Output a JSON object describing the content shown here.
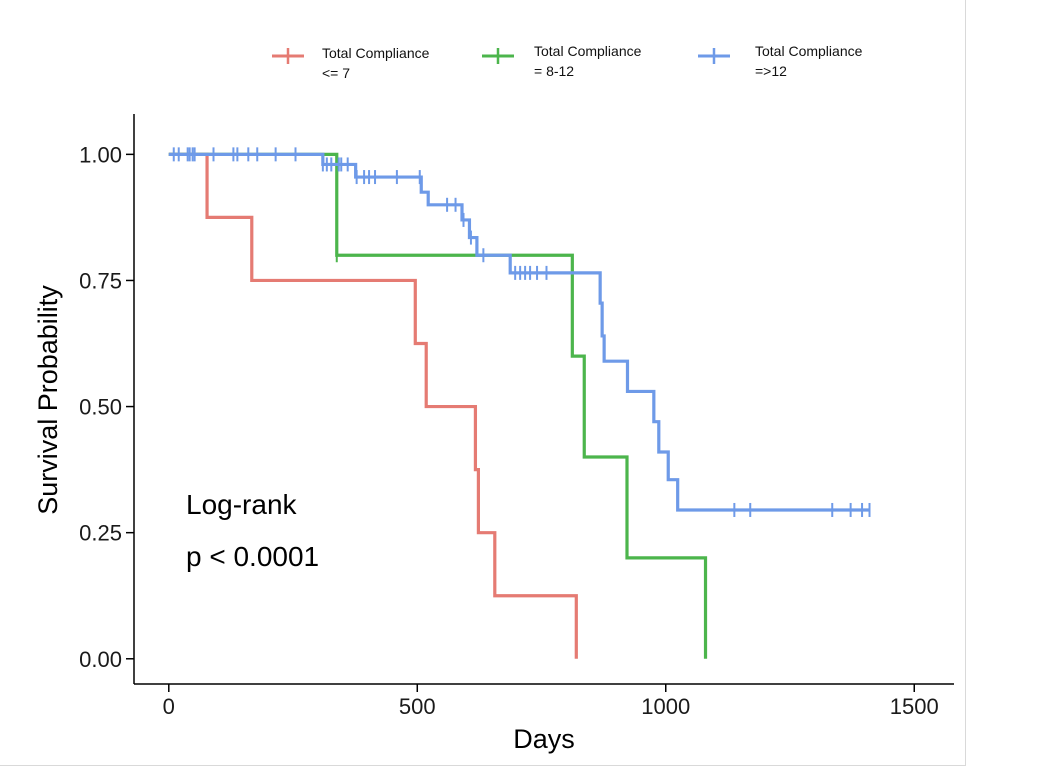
{
  "chart_data": {
    "type": "line",
    "subtype": "kaplan-meier",
    "xlabel": "Days",
    "ylabel": "Survival Probability",
    "xlim": [
      -70,
      1580
    ],
    "ylim": [
      -0.05,
      1.08
    ],
    "x_ticks": [
      0,
      500,
      1000,
      1500
    ],
    "x_tick_labels": [
      "0",
      "500",
      "1000",
      "1500"
    ],
    "y_ticks": [
      0,
      0.25,
      0.5,
      0.75,
      1.0
    ],
    "y_tick_labels": [
      "0.00",
      "0.25",
      "0.50",
      "0.75",
      "1.00"
    ],
    "grid": false,
    "legend_position": "top",
    "annotation": {
      "line1": "Log-rank",
      "line2": "p < 0.0001"
    },
    "series": [
      {
        "name": "Total Compliance\n<= 7",
        "color": "#E57B73",
        "steps": [
          [
            0,
            1.0
          ],
          [
            77,
            0.875
          ],
          [
            167,
            0.75
          ],
          [
            496,
            0.625
          ],
          [
            518,
            0.5
          ],
          [
            617,
            0.375
          ],
          [
            623,
            0.25
          ],
          [
            656,
            0.125
          ],
          [
            820,
            0.0
          ]
        ],
        "censor_times": []
      },
      {
        "name": "Total Compliance\n= 8-12",
        "color": "#4CB54C",
        "steps": [
          [
            0,
            1.0
          ],
          [
            338,
            0.8
          ],
          [
            812,
            0.6
          ],
          [
            836,
            0.4
          ],
          [
            922,
            0.2
          ],
          [
            1080,
            0.0
          ]
        ],
        "censor_times": [
          338
        ]
      },
      {
        "name": "Total Compliance\n=>12",
        "color": "#6E9AE8",
        "steps": [
          [
            0,
            1.0
          ],
          [
            310,
            0.98
          ],
          [
            376,
            0.955
          ],
          [
            508,
            0.925
          ],
          [
            522,
            0.9
          ],
          [
            590,
            0.87
          ],
          [
            605,
            0.835
          ],
          [
            620,
            0.8
          ],
          [
            687,
            0.765
          ],
          [
            868,
            0.705
          ],
          [
            872,
            0.64
          ],
          [
            876,
            0.59
          ],
          [
            923,
            0.53
          ],
          [
            976,
            0.47
          ],
          [
            986,
            0.41
          ],
          [
            1005,
            0.355
          ],
          [
            1024,
            0.295
          ],
          [
            1410,
            0.295
          ]
        ],
        "censor_times": [
          10,
          20,
          38,
          42,
          48,
          52,
          90,
          130,
          138,
          160,
          178,
          215,
          255,
          310,
          318,
          327,
          342,
          347,
          360,
          378,
          393,
          403,
          415,
          459,
          505,
          560,
          577,
          593,
          608,
          633,
          697,
          707,
          717,
          727,
          741,
          760,
          1138,
          1170,
          1335,
          1372,
          1395,
          1410
        ]
      }
    ]
  }
}
